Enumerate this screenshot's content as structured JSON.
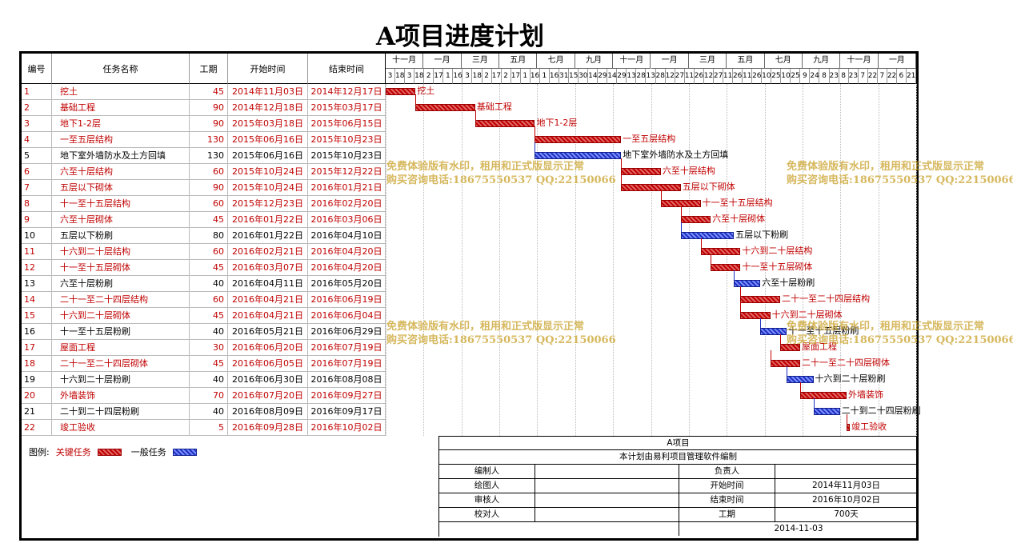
{
  "title": "A项目进度计划",
  "columns": {
    "id": "编号",
    "name": "任务名称",
    "duration": "工期",
    "start": "开始时间",
    "end": "结束时间"
  },
  "timeline": {
    "months": [
      "十一月",
      "一月",
      "三月",
      "五月",
      "七月",
      "九月",
      "十一月",
      "一月",
      "三月",
      "五月",
      "七月",
      "九月",
      "十一月",
      "一月"
    ],
    "days": [
      "3",
      "18",
      "3",
      "18",
      "2",
      "17",
      "1",
      "16",
      "3",
      "18",
      "2",
      "17",
      "2",
      "17",
      "1",
      "16",
      "1",
      "16",
      "31",
      "15",
      "30",
      "14",
      "29",
      "14",
      "29",
      "13",
      "28",
      "13",
      "28",
      "12",
      "27",
      "11",
      "26",
      "12",
      "27",
      "11",
      "26",
      "11",
      "26",
      "10",
      "25",
      "10",
      "25",
      "9",
      "24",
      "8",
      "23",
      "8",
      "23",
      "7",
      "22",
      "7",
      "22",
      "6",
      "21"
    ]
  },
  "tasks": [
    {
      "id": "1",
      "name": "挖土",
      "duration": "45",
      "start": "2014年11月03日",
      "end": "2014年12月17日",
      "critical": true
    },
    {
      "id": "2",
      "name": "基础工程",
      "duration": "90",
      "start": "2014年12月18日",
      "end": "2015年03月17日",
      "critical": true
    },
    {
      "id": "3",
      "name": "地下1-2层",
      "duration": "90",
      "start": "2015年03月18日",
      "end": "2015年06月15日",
      "critical": true
    },
    {
      "id": "4",
      "name": "一至五层结构",
      "duration": "130",
      "start": "2015年06月16日",
      "end": "2015年10月23日",
      "critical": true
    },
    {
      "id": "5",
      "name": "地下室外墙防水及土方回填",
      "duration": "130",
      "start": "2015年06月16日",
      "end": "2015年10月23日",
      "critical": false
    },
    {
      "id": "6",
      "name": "六至十层结构",
      "duration": "60",
      "start": "2015年10月24日",
      "end": "2015年12月22日",
      "critical": true
    },
    {
      "id": "7",
      "name": "五层以下砌体",
      "duration": "90",
      "start": "2015年10月24日",
      "end": "2016年01月21日",
      "critical": true
    },
    {
      "id": "8",
      "name": "十一至十五层结构",
      "duration": "60",
      "start": "2015年12月23日",
      "end": "2016年02月20日",
      "critical": true
    },
    {
      "id": "9",
      "name": "六至十层砌体",
      "duration": "45",
      "start": "2016年01月22日",
      "end": "2016年03月06日",
      "critical": true
    },
    {
      "id": "10",
      "name": "五层以下粉刷",
      "duration": "80",
      "start": "2016年01月22日",
      "end": "2016年04月10日",
      "critical": false
    },
    {
      "id": "11",
      "name": "十六到二十层结构",
      "duration": "60",
      "start": "2016年02月21日",
      "end": "2016年04月20日",
      "critical": true
    },
    {
      "id": "12",
      "name": "十一至十五层砌体",
      "duration": "45",
      "start": "2016年03月07日",
      "end": "2016年04月20日",
      "critical": true
    },
    {
      "id": "13",
      "name": "六至十层粉刷",
      "duration": "40",
      "start": "2016年04月11日",
      "end": "2016年05月20日",
      "critical": false
    },
    {
      "id": "14",
      "name": "二十一至二十四层结构",
      "duration": "60",
      "start": "2016年04月21日",
      "end": "2016年06月19日",
      "critical": true
    },
    {
      "id": "15",
      "name": "十六到二十层砌体",
      "duration": "45",
      "start": "2016年04月21日",
      "end": "2016年06月04日",
      "critical": true
    },
    {
      "id": "16",
      "name": "十一至十五层粉刷",
      "duration": "40",
      "start": "2016年05月21日",
      "end": "2016年06月29日",
      "critical": false
    },
    {
      "id": "17",
      "name": "屋面工程",
      "duration": "30",
      "start": "2016年06月20日",
      "end": "2016年07月19日",
      "critical": true
    },
    {
      "id": "18",
      "name": "二十一至二十四层砌体",
      "duration": "45",
      "start": "2016年06月05日",
      "end": "2016年07月19日",
      "critical": true
    },
    {
      "id": "19",
      "name": "十六到二十层粉刷",
      "duration": "40",
      "start": "2016年06月30日",
      "end": "2016年08月08日",
      "critical": false
    },
    {
      "id": "20",
      "name": "外墙装饰",
      "duration": "70",
      "start": "2016年07月20日",
      "end": "2016年09月27日",
      "critical": true
    },
    {
      "id": "21",
      "name": "二十到二十四层粉刷",
      "duration": "40",
      "start": "2016年08月09日",
      "end": "2016年09月17日",
      "critical": false
    },
    {
      "id": "22",
      "name": "竣工验收",
      "duration": "5",
      "start": "2016年09月28日",
      "end": "2016年10月02日",
      "critical": true
    }
  ],
  "bar_labels": [
    "挖土",
    "基础工程",
    "地下1-2层",
    "一至五层结构",
    "地下室外墙防水及土方回填",
    "六至十层结构",
    "五层以下砌体",
    "十一至十五层结构",
    "六至十层砌体",
    "五层以下粉刷",
    "十六到二十层结构",
    "十一至十五层砌体",
    "六至十层粉刷",
    "二十一至二十四层结构",
    "十六到二十层砌体",
    "十一至十五层粉刷",
    "屋面工程",
    "二十一至二十四层砌体",
    "十六到二十层粉刷",
    "外墙装饰",
    "二十到二十四层粉刷",
    "竣工验收"
  ],
  "watermark": {
    "line1": "免费体验版有水印，租用和正式版显示正常",
    "line2": "购买咨询电话:18675550537 QQ:22150066"
  },
  "legend": {
    "label": "图例:",
    "critical": "关键任务",
    "normal": "一般任务"
  },
  "colors": {
    "critical": "#c00000",
    "normal": "#2030c0"
  },
  "footer": {
    "project": "A项目",
    "note": "本计划由易利项目管理软件编制",
    "rows": [
      {
        "k1": "编制人",
        "v1": "",
        "k2": "负责人",
        "v2": ""
      },
      {
        "k1": "绘图人",
        "v1": "",
        "k2": "开始时间",
        "v2": "2014年11月03日"
      },
      {
        "k1": "审核人",
        "v1": "",
        "k2": "结束时间",
        "v2": "2016年10月02日"
      },
      {
        "k1": "校对人",
        "v1": "",
        "k2": "工期",
        "v2": "700天"
      }
    ],
    "date": "2014-11-03"
  }
}
